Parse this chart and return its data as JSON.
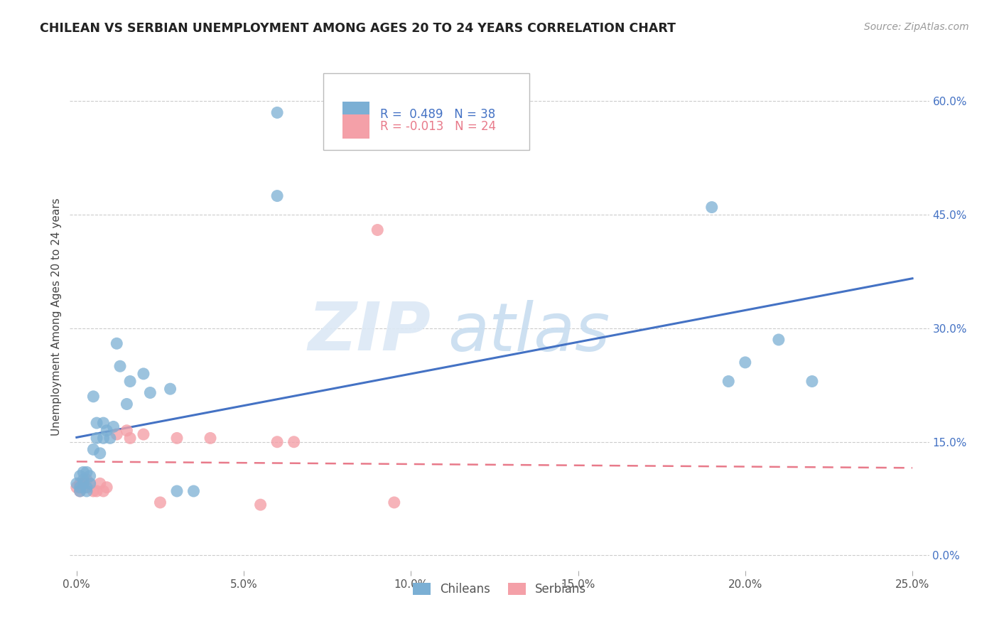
{
  "title": "CHILEAN VS SERBIAN UNEMPLOYMENT AMONG AGES 20 TO 24 YEARS CORRELATION CHART",
  "source": "Source: ZipAtlas.com",
  "ylabel": "Unemployment Among Ages 20 to 24 years",
  "xlabel_ticks": [
    "0.0%",
    "5.0%",
    "10.0%",
    "15.0%",
    "20.0%",
    "25.0%"
  ],
  "xlabel_vals": [
    0.0,
    0.05,
    0.1,
    0.15,
    0.2,
    0.25
  ],
  "ylabel_ticks": [
    "0.0%",
    "15.0%",
    "30.0%",
    "45.0%",
    "60.0%"
  ],
  "ylabel_vals": [
    0.0,
    0.15,
    0.3,
    0.45,
    0.6
  ],
  "xlim": [
    -0.002,
    0.255
  ],
  "ylim": [
    -0.02,
    0.65
  ],
  "legend_r_chileans": "R =  0.489",
  "legend_n_chileans": "N = 38",
  "legend_r_serbians": "R = -0.013",
  "legend_n_serbians": "N = 24",
  "color_chileans": "#7bafd4",
  "color_serbians": "#f4a0a8",
  "color_line_chileans": "#4472c4",
  "color_line_serbians": "#e87a8a",
  "watermark_zip": "ZIP",
  "watermark_atlas": "atlas",
  "chileans_x": [
    0.0,
    0.001,
    0.001,
    0.001,
    0.002,
    0.002,
    0.002,
    0.003,
    0.003,
    0.003,
    0.004,
    0.004,
    0.005,
    0.005,
    0.006,
    0.006,
    0.007,
    0.008,
    0.008,
    0.009,
    0.01,
    0.011,
    0.012,
    0.013,
    0.015,
    0.016,
    0.02,
    0.022,
    0.028,
    0.03,
    0.035,
    0.06,
    0.06,
    0.19,
    0.195,
    0.2,
    0.21,
    0.22
  ],
  "chileans_y": [
    0.095,
    0.09,
    0.085,
    0.105,
    0.095,
    0.1,
    0.11,
    0.085,
    0.09,
    0.11,
    0.095,
    0.105,
    0.21,
    0.14,
    0.155,
    0.175,
    0.135,
    0.155,
    0.175,
    0.165,
    0.155,
    0.17,
    0.28,
    0.25,
    0.2,
    0.23,
    0.24,
    0.215,
    0.22,
    0.085,
    0.085,
    0.585,
    0.475,
    0.46,
    0.23,
    0.255,
    0.285,
    0.23
  ],
  "serbians_x": [
    0.0,
    0.001,
    0.001,
    0.002,
    0.002,
    0.003,
    0.004,
    0.005,
    0.006,
    0.007,
    0.008,
    0.009,
    0.012,
    0.015,
    0.016,
    0.02,
    0.025,
    0.03,
    0.04,
    0.055,
    0.06,
    0.065,
    0.09,
    0.095
  ],
  "serbians_y": [
    0.09,
    0.085,
    0.095,
    0.095,
    0.09,
    0.1,
    0.095,
    0.085,
    0.085,
    0.095,
    0.085,
    0.09,
    0.16,
    0.165,
    0.155,
    0.16,
    0.07,
    0.155,
    0.155,
    0.067,
    0.15,
    0.15,
    0.43,
    0.07
  ]
}
